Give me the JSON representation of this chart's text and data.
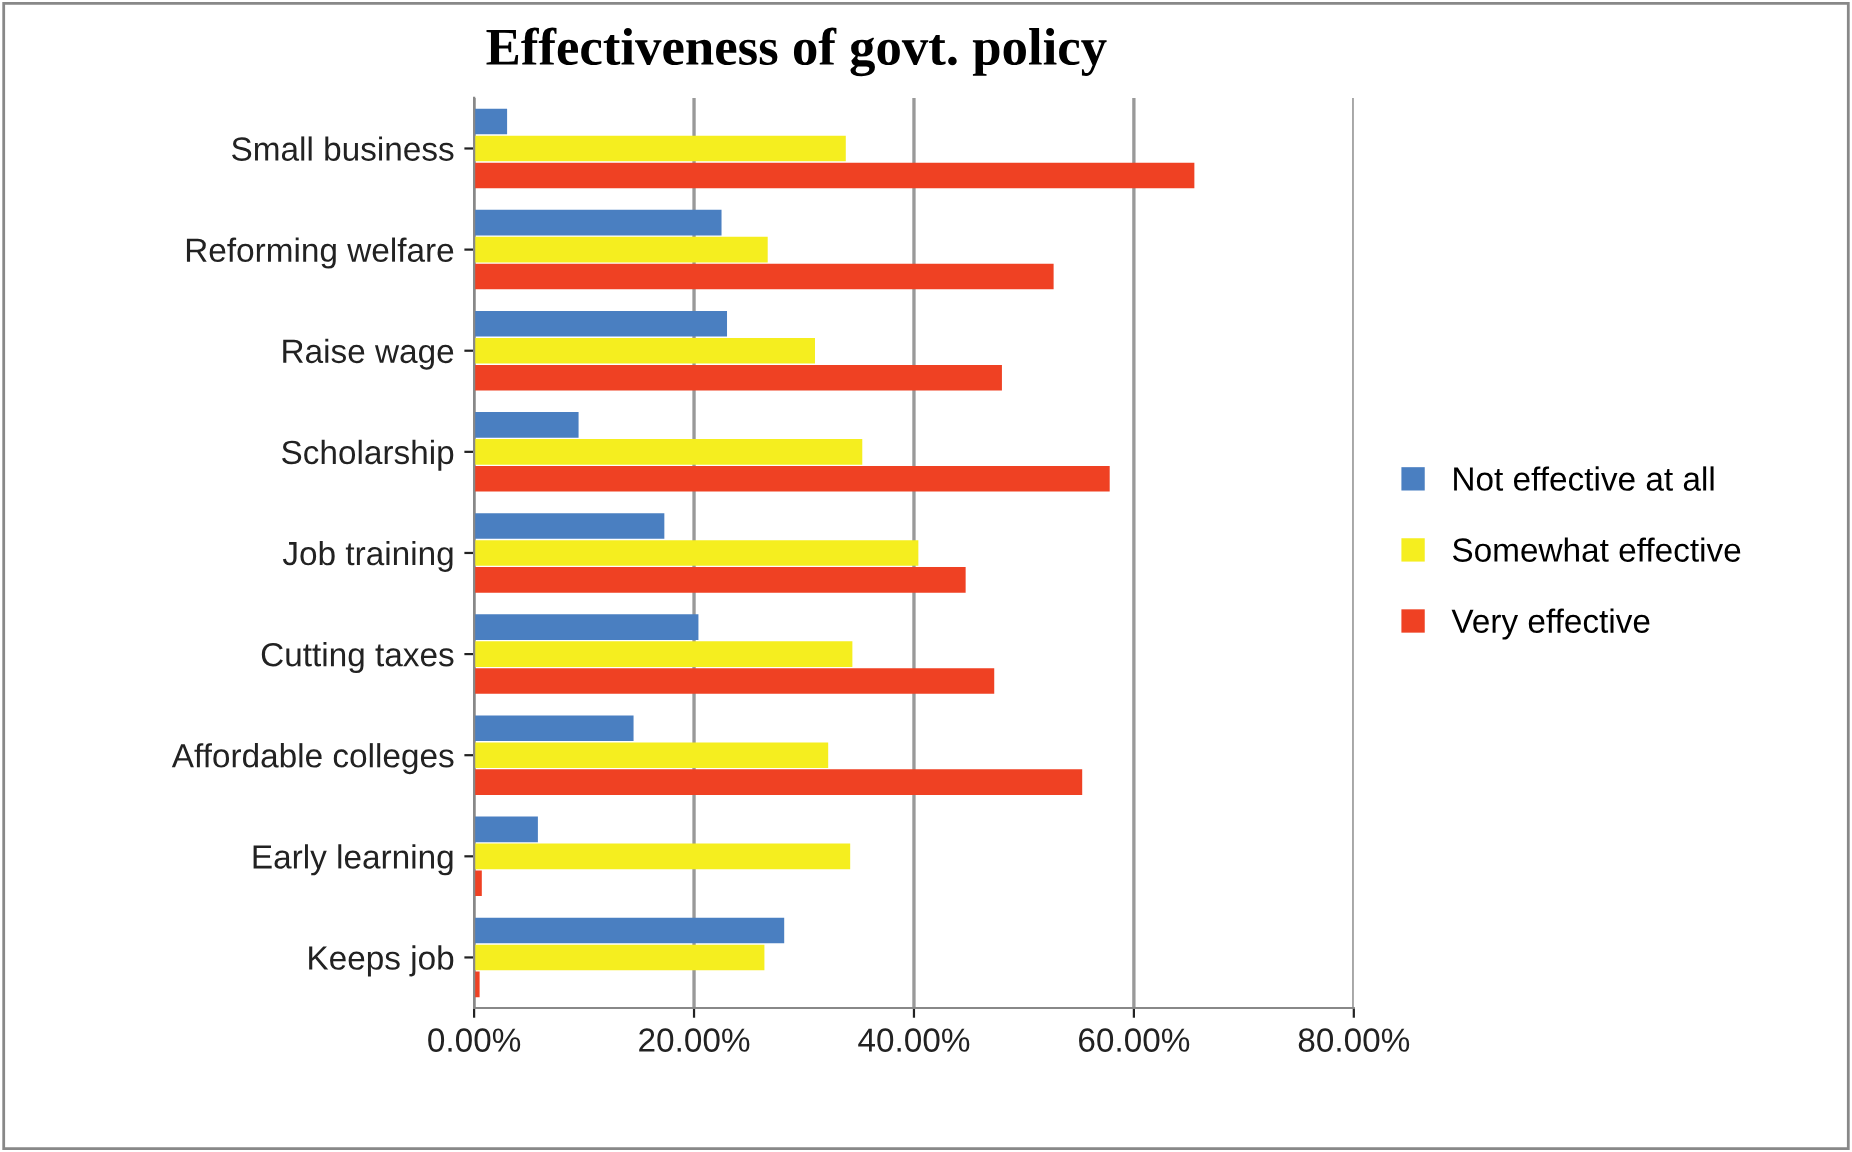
{
  "chart_data": {
    "type": "bar",
    "orientation": "horizontal",
    "title": "Effectiveness of govt. policy",
    "categories": [
      "Small business",
      "Reforming welfare",
      "Raise wage",
      "Scholarship",
      "Job training",
      "Cutting taxes",
      "Affordable colleges",
      "Early learning",
      "Keeps job"
    ],
    "series": [
      {
        "name": "Not effective at all",
        "color": "#4a7fc1",
        "values": [
          3,
          22.5,
          23,
          9.5,
          17.3,
          20.4,
          14.5,
          5.8,
          28.2
        ]
      },
      {
        "name": "Somewhat effective",
        "color": "#f5ee1f",
        "values": [
          33.8,
          26.7,
          31,
          35.3,
          40.4,
          34.4,
          32.2,
          34.2,
          26.4
        ]
      },
      {
        "name": "Very effective",
        "color": "#ef4123",
        "values": [
          65.5,
          52.7,
          48,
          57.8,
          44.7,
          47.3,
          55.3,
          0.7,
          0.5
        ]
      }
    ],
    "xlim": [
      0,
      80
    ],
    "xticks": [
      {
        "value": 0,
        "label": "0.00%"
      },
      {
        "value": 20,
        "label": "20.00%"
      },
      {
        "value": 40,
        "label": "40.00%"
      },
      {
        "value": 60,
        "label": "60.00%"
      },
      {
        "value": 80,
        "label": "80.00%"
      }
    ],
    "grid": "x",
    "legend": "right"
  }
}
